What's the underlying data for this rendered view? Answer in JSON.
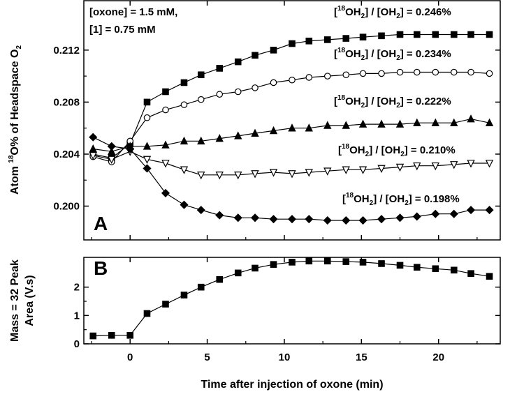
{
  "chart_data": [
    {
      "panel": "A",
      "type": "line",
      "ylabel_parts": {
        "pre": "Atom ",
        "sup": "18",
        "mid": "O% of Headspace O",
        "sub": "2"
      },
      "xlim": [
        -3,
        24
      ],
      "ylim": [
        0.1974,
        0.2158
      ],
      "xticks": [
        0,
        5,
        10,
        15,
        20
      ],
      "xtick_labels": [
        "0",
        "5",
        "10",
        "15",
        "20"
      ],
      "yticks": [
        0.2,
        0.204,
        0.208,
        0.212
      ],
      "ytick_labels": [
        "0.200",
        "0.204",
        "0.208",
        "0.212"
      ],
      "conditions": [
        "[oxone] = 1.5 mM,",
        "[1] = 0.75 mM"
      ],
      "series": [
        {
          "name": "[18OH2] / [OH2] = 0.246%",
          "label_value": "0.246%",
          "marker": "square-filled",
          "x": [
            -2.4,
            -1.2,
            0,
            1.1,
            2.3,
            3.5,
            4.6,
            5.8,
            7.0,
            8.1,
            9.3,
            10.5,
            11.6,
            12.8,
            14.0,
            15.1,
            16.3,
            17.5,
            18.6,
            19.8,
            21.0,
            22.1,
            23.3
          ],
          "y": [
            0.204,
            0.2037,
            0.2048,
            0.208,
            0.2088,
            0.2095,
            0.2101,
            0.2106,
            0.2111,
            0.2116,
            0.212,
            0.2125,
            0.2127,
            0.2128,
            0.2129,
            0.213,
            0.2131,
            0.2132,
            0.2132,
            0.2132,
            0.2132,
            0.2132,
            0.2132
          ]
        },
        {
          "name": "[18OH2] / [OH2] = 0.234%",
          "label_value": "0.234%",
          "marker": "circle-open",
          "x": [
            -2.4,
            -1.2,
            0,
            1.1,
            2.3,
            3.5,
            4.6,
            5.8,
            7.0,
            8.1,
            9.3,
            10.5,
            11.6,
            12.8,
            14.0,
            15.1,
            16.3,
            17.5,
            18.6,
            19.8,
            21.0,
            22.1,
            23.3
          ],
          "y": [
            0.2038,
            0.2034,
            0.205,
            0.2068,
            0.2074,
            0.2078,
            0.2082,
            0.2086,
            0.2088,
            0.2091,
            0.2095,
            0.2097,
            0.2099,
            0.21,
            0.2101,
            0.2102,
            0.2102,
            0.2103,
            0.2103,
            0.2103,
            0.2103,
            0.2103,
            0.2102
          ]
        },
        {
          "name": "[18OH2] / [OH2] = 0.222%",
          "label_value": "0.222%",
          "marker": "triangle-filled",
          "x": [
            -2.4,
            -1.2,
            0,
            1.1,
            2.3,
            3.5,
            4.6,
            5.8,
            7.0,
            8.1,
            9.3,
            10.5,
            11.6,
            12.8,
            14.0,
            15.1,
            16.3,
            17.5,
            18.6,
            19.8,
            21.0,
            22.1,
            23.3
          ],
          "y": [
            0.2044,
            0.2042,
            0.2046,
            0.2046,
            0.2047,
            0.205,
            0.205,
            0.2052,
            0.2054,
            0.2056,
            0.2058,
            0.206,
            0.206,
            0.2062,
            0.2062,
            0.2063,
            0.2063,
            0.2063,
            0.2064,
            0.2064,
            0.2064,
            0.2067,
            0.2064
          ]
        },
        {
          "name": "[18OH2] / [OH2] = 0.210%",
          "label_value": "0.210%",
          "marker": "triangle-down-open",
          "x": [
            -2.4,
            -1.2,
            0,
            1.1,
            2.3,
            3.5,
            4.6,
            5.8,
            7.0,
            8.1,
            9.3,
            10.5,
            11.6,
            12.8,
            14.0,
            15.1,
            16.3,
            17.5,
            18.6,
            19.8,
            21.0,
            22.1,
            23.3
          ],
          "y": [
            0.2039,
            0.2036,
            0.2042,
            0.2036,
            0.2033,
            0.2028,
            0.2024,
            0.2024,
            0.2024,
            0.2025,
            0.2026,
            0.2025,
            0.2026,
            0.2027,
            0.2028,
            0.2028,
            0.2029,
            0.203,
            0.2031,
            0.2031,
            0.2032,
            0.2033,
            0.2033
          ]
        },
        {
          "name": "[18OH2] / [OH2] = 0.198%",
          "label_value": "0.198%",
          "marker": "diamond-filled",
          "x": [
            -2.4,
            -1.2,
            0,
            1.1,
            2.3,
            3.5,
            4.6,
            5.8,
            7.0,
            8.1,
            9.3,
            10.5,
            11.6,
            12.8,
            14.0,
            15.1,
            16.3,
            17.5,
            18.6,
            19.8,
            21.0,
            22.1,
            23.3
          ],
          "y": [
            0.2053,
            0.2046,
            0.2044,
            0.2029,
            0.201,
            0.2001,
            0.1997,
            0.1993,
            0.1991,
            0.1991,
            0.199,
            0.199,
            0.199,
            0.1989,
            0.1989,
            0.1989,
            0.199,
            0.1991,
            0.1992,
            0.1994,
            0.1994,
            0.1997,
            0.1997
          ]
        }
      ]
    },
    {
      "panel": "B",
      "type": "line",
      "ylabel_lines": [
        "Mass = 32 Peak",
        "Area (V.s)"
      ],
      "xlabel": "Time after injection of oxone (min)",
      "xlim": [
        -3,
        24
      ],
      "ylim": [
        0,
        3.05
      ],
      "xticks": [
        0,
        5,
        10,
        15,
        20
      ],
      "xtick_labels": [
        "0",
        "5",
        "10",
        "15",
        "20"
      ],
      "yticks": [
        0,
        1,
        2
      ],
      "ytick_labels": [
        "0",
        "1",
        "2"
      ],
      "series": [
        {
          "marker": "square-filled",
          "x": [
            -2.4,
            -1.2,
            0,
            1.1,
            2.3,
            3.5,
            4.6,
            5.8,
            7.0,
            8.1,
            9.3,
            10.5,
            11.6,
            12.8,
            14.0,
            15.1,
            16.3,
            17.5,
            18.6,
            19.8,
            21.0,
            22.1,
            23.3
          ],
          "y": [
            0.28,
            0.3,
            0.3,
            1.07,
            1.4,
            1.72,
            2.0,
            2.27,
            2.5,
            2.67,
            2.8,
            2.88,
            2.92,
            2.92,
            2.9,
            2.88,
            2.83,
            2.77,
            2.7,
            2.65,
            2.6,
            2.48,
            2.38
          ]
        }
      ]
    }
  ]
}
